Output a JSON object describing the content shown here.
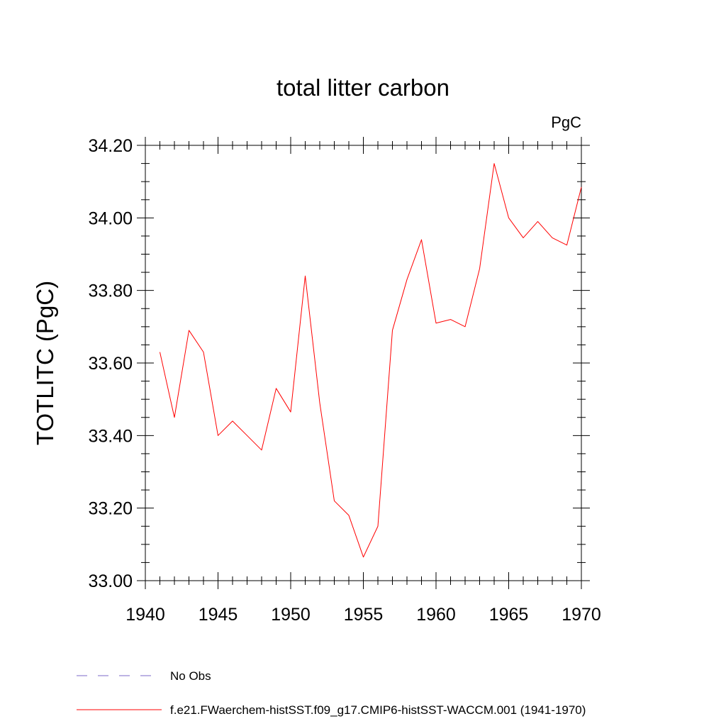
{
  "chart_data": {
    "type": "line",
    "title": "total litter carbon",
    "units_label": "PgC",
    "xlabel": "",
    "ylabel": "TOTLITC  (PgC)",
    "xlim": [
      1940,
      1970
    ],
    "ylim": [
      33.0,
      34.2
    ],
    "x_ticks": [
      "1940",
      "1945",
      "1950",
      "1955",
      "1960",
      "1965",
      "1970"
    ],
    "y_ticks": [
      "33.00",
      "33.20",
      "33.40",
      "33.60",
      "33.80",
      "34.00",
      "34.20"
    ],
    "grid": false,
    "legend_position": "bottom-left",
    "series": [
      {
        "name": "f.e21.FWaerchem-histSST.f09_g17.CMIP6-histSST-WACCM.001 (1941-1970)",
        "color": "#ff0000",
        "style": "solid",
        "x": [
          1941,
          1942,
          1943,
          1944,
          1945,
          1946,
          1947,
          1948,
          1949,
          1950,
          1951,
          1952,
          1953,
          1954,
          1955,
          1956,
          1957,
          1958,
          1959,
          1960,
          1961,
          1962,
          1963,
          1964,
          1965,
          1966,
          1967,
          1968,
          1969,
          1970
        ],
        "y": [
          33.63,
          33.45,
          33.69,
          33.63,
          33.4,
          33.44,
          33.4,
          33.36,
          33.53,
          33.465,
          33.84,
          33.49,
          33.22,
          33.18,
          33.065,
          33.15,
          33.69,
          33.83,
          33.94,
          33.71,
          33.72,
          33.7,
          33.86,
          34.15,
          34.0,
          33.945,
          33.99,
          33.945,
          33.925,
          34.085
        ]
      }
    ],
    "legend": [
      {
        "label": "No Obs",
        "color": "#7b68c9",
        "style": "dashed"
      },
      {
        "label": "f.e21.FWaerchem-histSST.f09_g17.CMIP6-histSST-WACCM.001 (1941-1970)",
        "color": "#ff0000",
        "style": "solid"
      }
    ]
  }
}
